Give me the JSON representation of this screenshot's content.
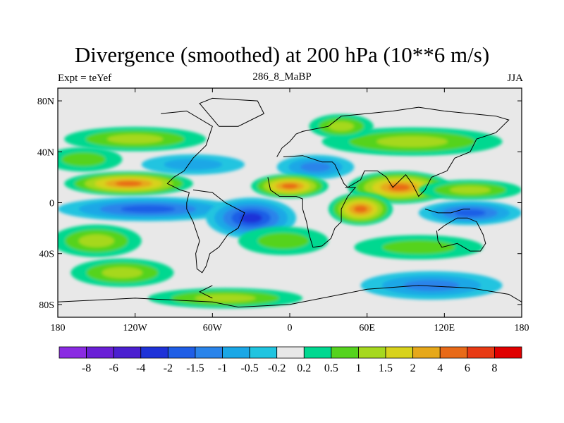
{
  "title": "Divergence (smoothed) at 200 hPa (10**6 m/s)",
  "subtitle_left": "Expt = teYef",
  "subtitle_center": "286_8_MaBP",
  "subtitle_right": "JJA",
  "axes": {
    "lon_range": [
      -180,
      180
    ],
    "lat_range": [
      -90,
      90
    ],
    "x_ticks": [
      {
        "value": -180,
        "label": "180"
      },
      {
        "value": -120,
        "label": "120W"
      },
      {
        "value": -60,
        "label": "60W"
      },
      {
        "value": 0,
        "label": "0"
      },
      {
        "value": 60,
        "label": "60E"
      },
      {
        "value": 120,
        "label": "120E"
      },
      {
        "value": 180,
        "label": "180"
      }
    ],
    "y_ticks": [
      {
        "value": 80,
        "label": "80N"
      },
      {
        "value": 40,
        "label": "40N"
      },
      {
        "value": 0,
        "label": "0"
      },
      {
        "value": -40,
        "label": "40S"
      },
      {
        "value": -80,
        "label": "80S"
      }
    ]
  },
  "colorbar": {
    "colors": [
      "#8a2be2",
      "#6a1fd6",
      "#4b1fd0",
      "#1e32d8",
      "#1f5ee6",
      "#2a84ea",
      "#1aa7e6",
      "#20c4e0",
      "#e8e8e8",
      "#00d890",
      "#55d31e",
      "#a6d81f",
      "#d8d21c",
      "#e6a81a",
      "#e86a18",
      "#e83a14",
      "#e00000"
    ],
    "labels": [
      "-8",
      "-6",
      "-4",
      "-2",
      "-1.5",
      "-1",
      "-0.5",
      "-0.2",
      "0.2",
      "0.5",
      "1",
      "1.5",
      "2",
      "4",
      "6",
      "8"
    ]
  },
  "map_field": {
    "background": "#e8e8e8",
    "blobs": [
      {
        "lon": -120,
        "lat": 50,
        "dlon": 55,
        "dlat": 6,
        "level": 11
      },
      {
        "lon": 95,
        "lat": 48,
        "dlon": 70,
        "dlat": 7,
        "level": 11
      },
      {
        "lon": -160,
        "lat": 34,
        "dlon": 30,
        "dlat": 6,
        "level": 10
      },
      {
        "lon": -75,
        "lat": 30,
        "dlon": 40,
        "dlat": 5,
        "level": 6
      },
      {
        "lon": 20,
        "lat": 28,
        "dlon": 30,
        "dlat": 6,
        "level": 5
      },
      {
        "lon": -125,
        "lat": 15,
        "dlon": 50,
        "dlat": 6,
        "level": 14
      },
      {
        "lon": 0,
        "lat": 13,
        "dlon": 30,
        "dlat": 6,
        "level": 14
      },
      {
        "lon": 85,
        "lat": 12,
        "dlon": 40,
        "dlat": 8,
        "level": 14
      },
      {
        "lon": 140,
        "lat": 10,
        "dlon": 40,
        "dlat": 5,
        "level": 11
      },
      {
        "lon": -110,
        "lat": -5,
        "dlon": 70,
        "dlat": 6,
        "level": 4
      },
      {
        "lon": -30,
        "lat": -12,
        "dlon": 35,
        "dlat": 10,
        "level": 3
      },
      {
        "lon": 55,
        "lat": -5,
        "dlon": 25,
        "dlat": 8,
        "level": 14
      },
      {
        "lon": 140,
        "lat": -8,
        "dlon": 40,
        "dlat": 6,
        "level": 4
      },
      {
        "lon": -150,
        "lat": -30,
        "dlon": 35,
        "dlat": 8,
        "level": 11
      },
      {
        "lon": -5,
        "lat": -30,
        "dlon": 35,
        "dlat": 7,
        "level": 10
      },
      {
        "lon": 100,
        "lat": -35,
        "dlon": 50,
        "dlat": 6,
        "level": 10
      },
      {
        "lon": -130,
        "lat": -55,
        "dlon": 40,
        "dlat": 7,
        "level": 11
      },
      {
        "lon": 110,
        "lat": -65,
        "dlon": 55,
        "dlat": 7,
        "level": 5
      },
      {
        "lon": -50,
        "lat": -75,
        "dlon": 60,
        "dlat": 5,
        "level": 11
      },
      {
        "lon": 40,
        "lat": 60,
        "dlon": 25,
        "dlat": 6,
        "level": 11
      }
    ]
  }
}
